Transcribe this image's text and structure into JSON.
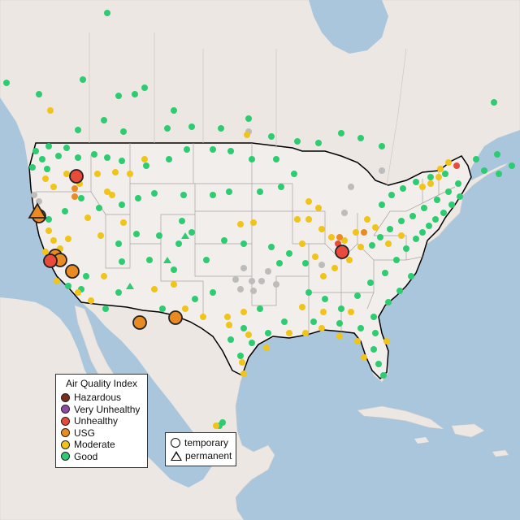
{
  "legend_aqi": {
    "title": "Air Quality Index",
    "items": [
      {
        "label": "Hazardous",
        "color": "#7e2a1e"
      },
      {
        "label": "Very Unhealthy",
        "color": "#8f4aa8"
      },
      {
        "label": "Unhealthy",
        "color": "#e84a3c"
      },
      {
        "label": "USG",
        "color": "#ea8a22"
      },
      {
        "label": "Moderate",
        "color": "#f0c419"
      },
      {
        "label": "Good",
        "color": "#2ecc71"
      }
    ]
  },
  "legend_type": {
    "temporary": "temporary",
    "permanent": "permanent"
  },
  "colors": {
    "ocean": "#a9c6dc",
    "land": "#ede8e4",
    "us_land": "#f1eeec",
    "lakes": "#a9c6dc",
    "no_data": "#bcbcbc"
  }
}
